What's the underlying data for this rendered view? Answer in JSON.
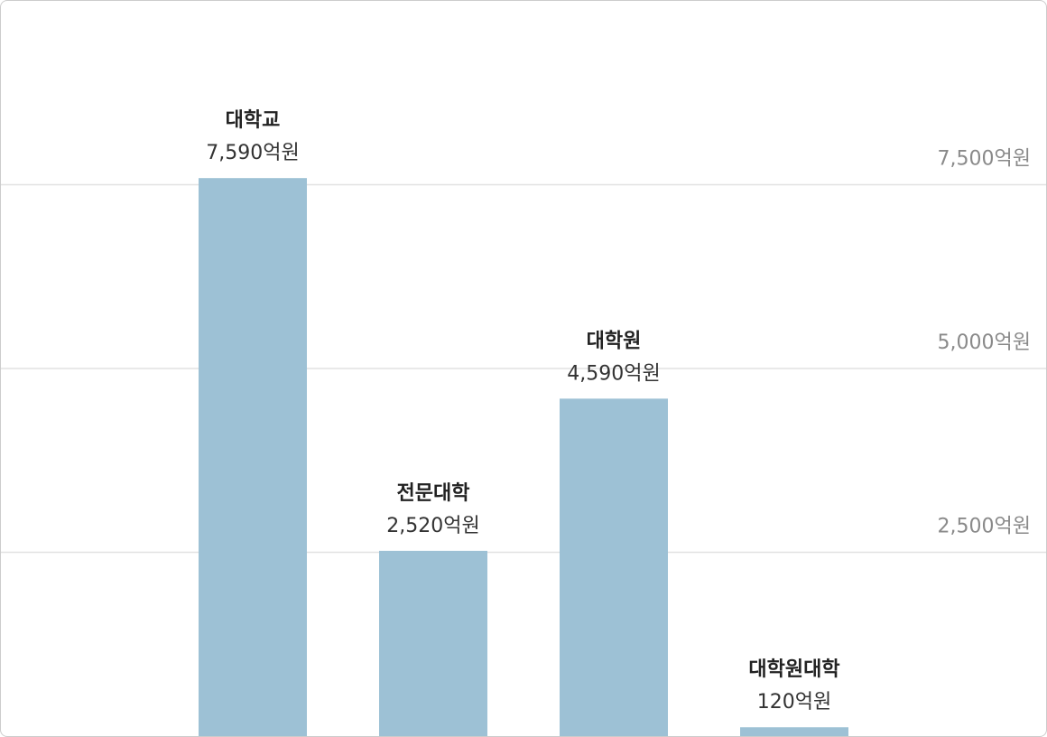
{
  "chart_data": {
    "type": "bar",
    "categories": [
      "대학교",
      "전문대학",
      "대학원",
      "대학원대학"
    ],
    "values": [
      7590,
      2520,
      4590,
      120
    ],
    "value_labels": [
      "7,590억원",
      "2,520억원",
      "4,590억원",
      "120억원"
    ],
    "color": "#9dc1d5",
    "ylim": [
      0,
      10000
    ],
    "yticks": [
      {
        "value": 2500,
        "label": "2,500억원"
      },
      {
        "value": 5000,
        "label": "5,000억원"
      },
      {
        "value": 7500,
        "label": "7,500억원"
      }
    ],
    "grid": true
  }
}
